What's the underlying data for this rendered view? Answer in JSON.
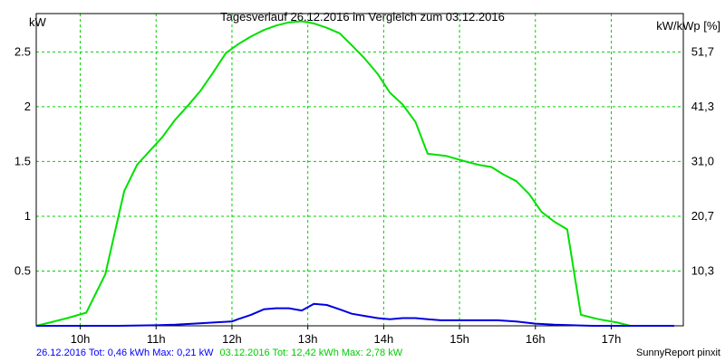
{
  "chart_data": {
    "type": "line",
    "title": "Tagesverlauf 26.12.2016 im Vergleich zum 03.12.2016",
    "ylabel_left": "kW",
    "ylabel_right": "kW/kWp [%]",
    "x_tick_labels": [
      "10h",
      "11h",
      "12h",
      "13h",
      "14h",
      "15h",
      "16h",
      "17h"
    ],
    "x_tick_values": [
      10,
      11,
      12,
      13,
      14,
      15,
      16,
      17
    ],
    "y_tick_values": [
      0.5,
      1,
      1.5,
      2,
      2.5
    ],
    "y_tick_labels": [
      "0.5",
      "1",
      "1.5",
      "2",
      "2.5"
    ],
    "y_right_tick_values": [
      0.5,
      1,
      1.5,
      2,
      2.5
    ],
    "y_right_tick_labels": [
      "10,3",
      "20,7",
      "31,0",
      "41,3",
      "51,7"
    ],
    "xlim": [
      9.42,
      17.95
    ],
    "ylim": [
      0,
      2.85
    ],
    "grid": true,
    "series": [
      {
        "name": "03.12.2016",
        "color": "#00e000",
        "x": [
          9.42,
          9.6,
          9.83,
          10.08,
          10.33,
          10.58,
          10.75,
          10.92,
          11.08,
          11.25,
          11.42,
          11.58,
          11.75,
          11.92,
          12.08,
          12.25,
          12.42,
          12.58,
          12.75,
          12.92,
          13.08,
          13.25,
          13.42,
          13.58,
          13.75,
          13.92,
          14.08,
          14.25,
          14.42,
          14.58,
          14.83,
          15.08,
          15.25,
          15.42,
          15.58,
          15.75,
          15.92,
          16.08,
          16.25,
          16.42,
          16.6,
          16.83,
          17.08,
          17.25,
          17.58,
          17.83
        ],
        "y": [
          0.0,
          0.03,
          0.07,
          0.12,
          0.47,
          1.23,
          1.47,
          1.6,
          1.72,
          1.88,
          2.01,
          2.14,
          2.31,
          2.49,
          2.57,
          2.64,
          2.7,
          2.74,
          2.77,
          2.78,
          2.76,
          2.72,
          2.67,
          2.56,
          2.44,
          2.3,
          2.13,
          2.02,
          1.86,
          1.57,
          1.55,
          1.5,
          1.47,
          1.45,
          1.38,
          1.32,
          1.2,
          1.04,
          0.95,
          0.88,
          0.1,
          0.06,
          0.03,
          0.0,
          0.0,
          0.0
        ]
      },
      {
        "name": "26.12.2016",
        "color": "#0000e0",
        "x": [
          9.42,
          10.0,
          10.5,
          11.0,
          11.25,
          11.5,
          11.75,
          12.0,
          12.08,
          12.25,
          12.42,
          12.58,
          12.75,
          12.92,
          13.08,
          13.25,
          13.42,
          13.58,
          13.75,
          13.92,
          14.08,
          14.25,
          14.42,
          14.58,
          14.75,
          15.0,
          15.25,
          15.5,
          15.75,
          16.0,
          16.25,
          16.5,
          16.75,
          17.0,
          17.5,
          17.83
        ],
        "y": [
          0.0,
          0.0,
          0.0,
          0.005,
          0.01,
          0.02,
          0.03,
          0.04,
          0.06,
          0.1,
          0.15,
          0.16,
          0.16,
          0.14,
          0.2,
          0.19,
          0.15,
          0.11,
          0.09,
          0.07,
          0.06,
          0.07,
          0.07,
          0.06,
          0.05,
          0.05,
          0.05,
          0.05,
          0.04,
          0.02,
          0.01,
          0.005,
          0.0,
          0.0,
          0.0,
          0.0
        ]
      }
    ]
  },
  "footer": {
    "legend_blue": "26.12.2016 Tot: 0,46 kWh Max: 0,21 kW",
    "legend_green": "03.12.2016 Tot: 12,42 kWh Max: 2,78 kW",
    "credit": "SunnyReport pinxit"
  },
  "colors": {
    "grid": "#00d000",
    "frame": "#000000",
    "blue_text": "#0000ff",
    "green_text": "#00cc00"
  }
}
